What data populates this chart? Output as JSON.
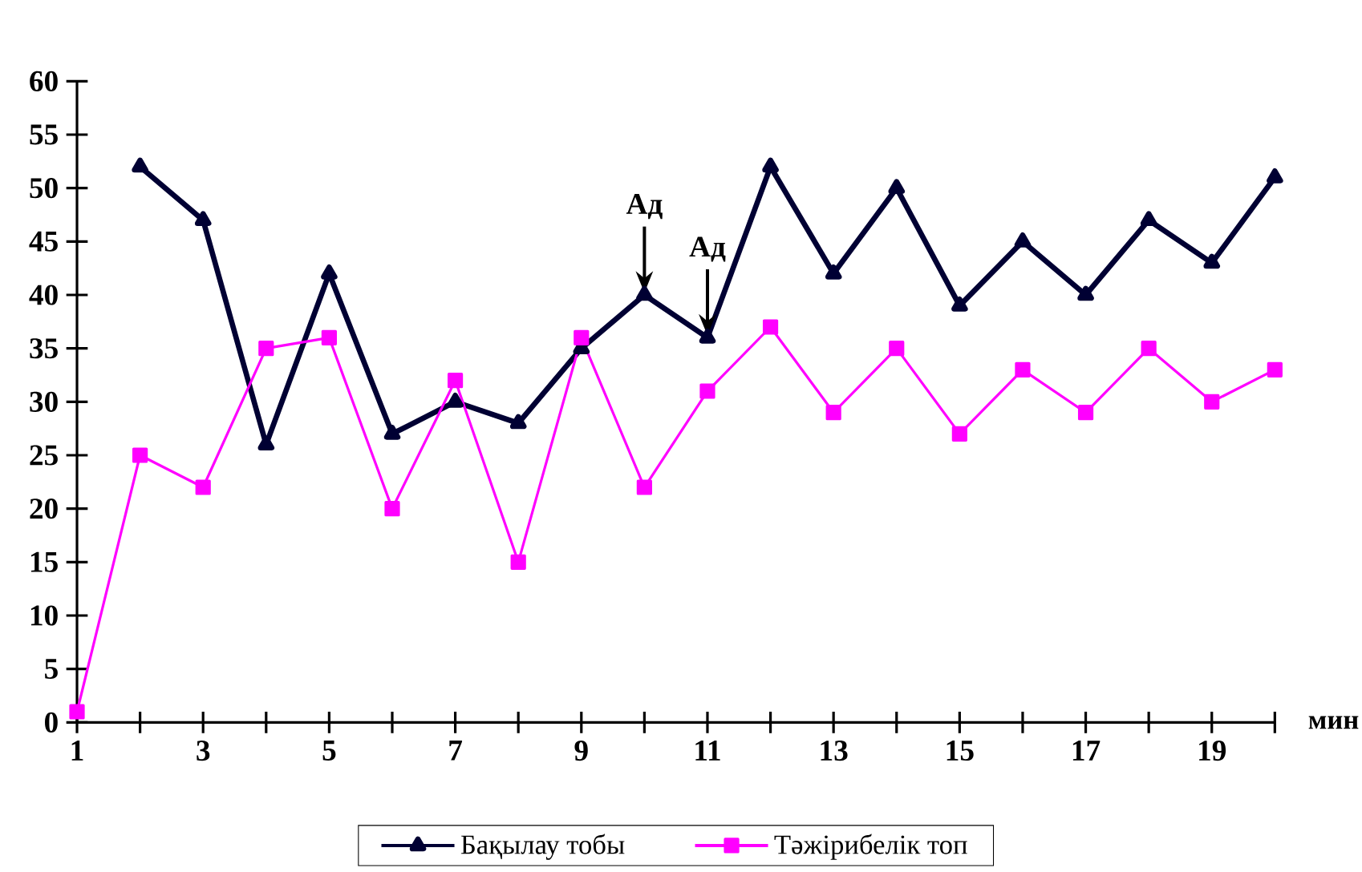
{
  "chart_data": {
    "type": "line",
    "xlabel": "мин",
    "x": [
      1,
      2,
      3,
      4,
      5,
      6,
      7,
      8,
      9,
      10,
      11,
      12,
      13,
      14,
      15,
      16,
      17,
      18,
      19,
      20
    ],
    "series": [
      {
        "name": "Бақылау тобы",
        "color": "#000033",
        "marker": "triangle",
        "values": [
          null,
          52,
          47,
          26,
          42,
          27,
          30,
          28,
          35,
          40,
          36,
          52,
          42,
          50,
          39,
          45,
          40,
          47,
          43,
          51
        ]
      },
      {
        "name": "Тәжірибелік топ",
        "color": "#ff00ff",
        "marker": "square",
        "values": [
          1,
          25,
          22,
          35,
          36,
          20,
          32,
          15,
          36,
          22,
          31,
          37,
          29,
          35,
          27,
          33,
          29,
          35,
          30,
          33
        ]
      }
    ],
    "xlim": [
      1,
      20
    ],
    "xticks": [
      1,
      {
        "value": 2,
        "label": null
      },
      3,
      {
        "value": 4,
        "label": null
      },
      5,
      {
        "value": 6,
        "label": null
      },
      7,
      {
        "value": 8,
        "label": null
      },
      9,
      {
        "value": 10,
        "label": null
      },
      11,
      {
        "value": 12,
        "label": null
      },
      13,
      {
        "value": 14,
        "label": null
      },
      15,
      {
        "value": 16,
        "label": null
      },
      17,
      {
        "value": 18,
        "label": null
      },
      19,
      {
        "value": 20,
        "label": null
      }
    ],
    "ylim": [
      0,
      60
    ],
    "yticks": [
      0,
      5,
      10,
      15,
      20,
      25,
      30,
      35,
      40,
      45,
      50,
      55,
      60
    ],
    "annotations": [
      {
        "text": "Ад",
        "x": 10,
        "y": 40
      },
      {
        "text": "Ад",
        "x": 11,
        "y": 36
      }
    ],
    "legend": "bottom",
    "grid": false,
    "line_style": "solid"
  }
}
